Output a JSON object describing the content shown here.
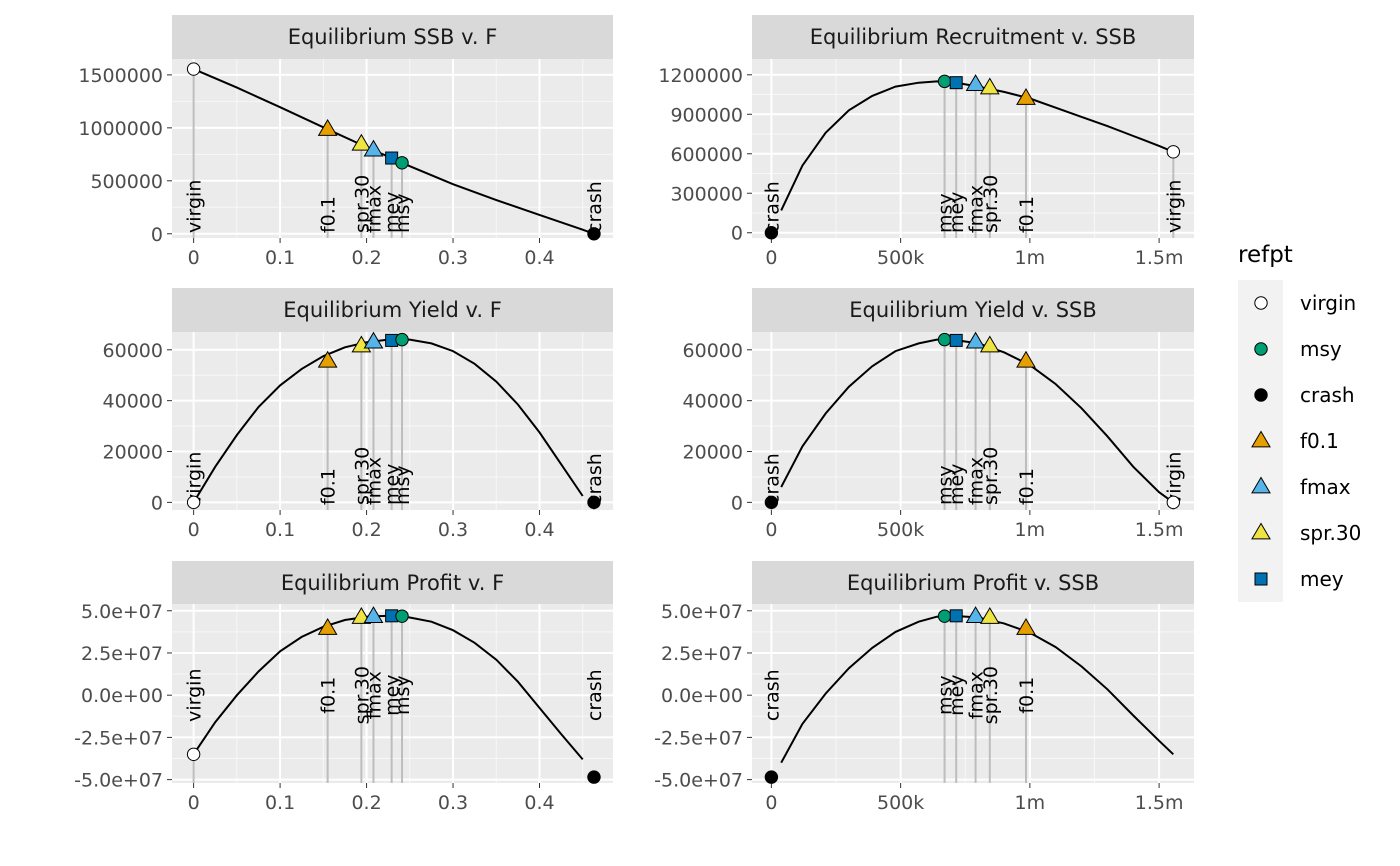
{
  "legend": {
    "title": "refpt",
    "items": [
      {
        "label": "virgin",
        "shape": "circle",
        "fill": "#ffffff"
      },
      {
        "label": "msy",
        "shape": "circle",
        "fill": "#009E73"
      },
      {
        "label": "crash",
        "shape": "circle",
        "fill": "#000000"
      },
      {
        "label": "f0.1",
        "shape": "triangle",
        "fill": "#E69F00"
      },
      {
        "label": "fmax",
        "shape": "triangle",
        "fill": "#56B4E9"
      },
      {
        "label": "spr.30",
        "shape": "triangle",
        "fill": "#F0E442"
      },
      {
        "label": "mey",
        "shape": "square",
        "fill": "#0072B2"
      }
    ]
  },
  "chart_data": [
    {
      "type": "line",
      "title": "Equilibrium SSB v. F",
      "xlim": [
        -0.025,
        0.485
      ],
      "ylim": [
        -40000,
        1650000
      ],
      "x_ticks": [
        0,
        0.1,
        0.2,
        0.3,
        0.4
      ],
      "x_tick_labels": [
        "0",
        "0.1",
        "0.2",
        "0.3",
        "0.4"
      ],
      "y_ticks": [
        0,
        500000,
        1000000,
        1500000
      ],
      "y_tick_labels": [
        "0",
        "500000",
        "1000000",
        "1500000"
      ],
      "curve": {
        "x": [
          0,
          0.05,
          0.1,
          0.15,
          0.2,
          0.25,
          0.3,
          0.35,
          0.4,
          0.45,
          0.463
        ],
        "y": [
          1555000,
          1380000,
          1195000,
          1005000,
          818000,
          638000,
          468000,
          318000,
          178000,
          38000,
          0
        ]
      },
      "points": [
        {
          "refpt": "virgin",
          "x": 0,
          "y": 1555000
        },
        {
          "refpt": "f0.1",
          "x": 0.155,
          "y": 985000
        },
        {
          "refpt": "spr.30",
          "x": 0.194,
          "y": 845000
        },
        {
          "refpt": "fmax",
          "x": 0.208,
          "y": 790000
        },
        {
          "refpt": "mey",
          "x": 0.229,
          "y": 715000
        },
        {
          "refpt": "msy",
          "x": 0.241,
          "y": 670000
        },
        {
          "refpt": "crash",
          "x": 0.463,
          "y": 0
        }
      ]
    },
    {
      "type": "line",
      "title": "Equilibrium Recruitment v. SSB",
      "xlim": [
        -75000,
        1635000
      ],
      "ylim": [
        -40000,
        1320000
      ],
      "x_ticks": [
        0,
        500000,
        1000000,
        1500000
      ],
      "x_tick_labels": [
        "0",
        "500k",
        "1m",
        "1.5m"
      ],
      "y_ticks": [
        0,
        300000,
        600000,
        900000,
        1200000
      ],
      "y_tick_labels": [
        "0",
        "300000",
        "600000",
        "900000",
        "1200000"
      ],
      "curve": {
        "x": [
          38000,
          120000,
          210000,
          300000,
          390000,
          480000,
          570000,
          640000,
          700000,
          800000,
          900000,
          1000000,
          1100000,
          1200000,
          1300000,
          1400000,
          1500000,
          1555000
        ],
        "y": [
          170000,
          510000,
          760000,
          930000,
          1040000,
          1110000,
          1140000,
          1150000,
          1145000,
          1110000,
          1070000,
          1020000,
          950000,
          880000,
          810000,
          735000,
          660000,
          615000
        ]
      },
      "points": [
        {
          "refpt": "crash",
          "x": 0,
          "y": 0
        },
        {
          "refpt": "msy",
          "x": 670000,
          "y": 1150000
        },
        {
          "refpt": "mey",
          "x": 715000,
          "y": 1140000
        },
        {
          "refpt": "fmax",
          "x": 790000,
          "y": 1125000
        },
        {
          "refpt": "spr.30",
          "x": 845000,
          "y": 1100000
        },
        {
          "refpt": "f0.1",
          "x": 985000,
          "y": 1020000
        },
        {
          "refpt": "virgin",
          "x": 1555000,
          "y": 615000
        }
      ]
    },
    {
      "type": "line",
      "title": "Equilibrium Yield v. F",
      "xlim": [
        -0.025,
        0.485
      ],
      "ylim": [
        -3000,
        67000
      ],
      "x_ticks": [
        0,
        0.1,
        0.2,
        0.3,
        0.4
      ],
      "x_tick_labels": [
        "0",
        "0.1",
        "0.2",
        "0.3",
        "0.4"
      ],
      "y_ticks": [
        0,
        20000,
        40000,
        60000
      ],
      "y_tick_labels": [
        "0",
        "20000",
        "40000",
        "60000"
      ],
      "curve": {
        "x": [
          0,
          0.025,
          0.05,
          0.075,
          0.1,
          0.125,
          0.15,
          0.175,
          0.2,
          0.225,
          0.25,
          0.275,
          0.3,
          0.325,
          0.35,
          0.375,
          0.4,
          0.425,
          0.45
        ],
        "y": [
          0,
          14000,
          26500,
          37500,
          46000,
          52500,
          57500,
          61000,
          63000,
          64000,
          64000,
          62500,
          59500,
          54500,
          47500,
          38500,
          27500,
          15000,
          2500
        ]
      },
      "points": [
        {
          "refpt": "virgin",
          "x": 0,
          "y": 0
        },
        {
          "refpt": "f0.1",
          "x": 0.155,
          "y": 55500
        },
        {
          "refpt": "spr.30",
          "x": 0.194,
          "y": 61500
        },
        {
          "refpt": "fmax",
          "x": 0.208,
          "y": 63000
        },
        {
          "refpt": "mey",
          "x": 0.229,
          "y": 63700
        },
        {
          "refpt": "msy",
          "x": 0.241,
          "y": 64000
        },
        {
          "refpt": "crash",
          "x": 0.463,
          "y": 0
        }
      ]
    },
    {
      "type": "line",
      "title": "Equilibrium Yield v. SSB",
      "xlim": [
        -75000,
        1635000
      ],
      "ylim": [
        -3000,
        67000
      ],
      "x_ticks": [
        0,
        500000,
        1000000,
        1500000
      ],
      "x_tick_labels": [
        "0",
        "500k",
        "1m",
        "1.5m"
      ],
      "y_ticks": [
        0,
        20000,
        40000,
        60000
      ],
      "y_tick_labels": [
        "0",
        "20000",
        "40000",
        "60000"
      ],
      "curve": {
        "x": [
          38000,
          120000,
          210000,
          300000,
          390000,
          480000,
          570000,
          640000,
          700000,
          800000,
          900000,
          1000000,
          1100000,
          1200000,
          1300000,
          1400000,
          1500000,
          1555000
        ],
        "y": [
          6000,
          22000,
          35000,
          45500,
          53500,
          59500,
          62500,
          64000,
          64000,
          62500,
          59000,
          54000,
          46500,
          37000,
          26000,
          14000,
          4000,
          0
        ]
      },
      "points": [
        {
          "refpt": "crash",
          "x": 0,
          "y": 0
        },
        {
          "refpt": "msy",
          "x": 670000,
          "y": 64000
        },
        {
          "refpt": "mey",
          "x": 715000,
          "y": 63700
        },
        {
          "refpt": "fmax",
          "x": 790000,
          "y": 63000
        },
        {
          "refpt": "spr.30",
          "x": 845000,
          "y": 61500
        },
        {
          "refpt": "f0.1",
          "x": 985000,
          "y": 55500
        },
        {
          "refpt": "virgin",
          "x": 1555000,
          "y": 0
        }
      ]
    },
    {
      "type": "line",
      "title": "Equilibrium Profit v. F",
      "xlim": [
        -0.025,
        0.485
      ],
      "ylim": [
        -52000000,
        54000000
      ],
      "x_ticks": [
        0,
        0.1,
        0.2,
        0.3,
        0.4
      ],
      "x_tick_labels": [
        "0",
        "0.1",
        "0.2",
        "0.3",
        "0.4"
      ],
      "y_ticks": [
        -50000000,
        -25000000,
        0,
        25000000,
        50000000
      ],
      "y_tick_labels": [
        "-5.0e+07",
        "-2.5e+07",
        "0.0e+00",
        "2.5e+07",
        "5.0e+07"
      ],
      "curve": {
        "x": [
          0,
          0.025,
          0.05,
          0.075,
          0.1,
          0.125,
          0.15,
          0.175,
          0.2,
          0.225,
          0.25,
          0.275,
          0.3,
          0.325,
          0.35,
          0.375,
          0.4,
          0.425,
          0.45
        ],
        "y": [
          -35000000,
          -16000000,
          0,
          14000000,
          26000000,
          34500000,
          40500000,
          44500000,
          46500000,
          47000000,
          46000000,
          43500000,
          38500000,
          31000000,
          21000000,
          8000000,
          -7500000,
          -23000000,
          -38000000
        ]
      },
      "points": [
        {
          "refpt": "virgin",
          "x": 0,
          "y": -35000000
        },
        {
          "refpt": "f0.1",
          "x": 0.155,
          "y": 39500000
        },
        {
          "refpt": "spr.30",
          "x": 0.194,
          "y": 46000000
        },
        {
          "refpt": "fmax",
          "x": 0.208,
          "y": 46500000
        },
        {
          "refpt": "mey",
          "x": 0.229,
          "y": 47000000
        },
        {
          "refpt": "msy",
          "x": 0.241,
          "y": 46800000
        },
        {
          "refpt": "crash",
          "x": 0.463,
          "y": -48500000
        }
      ]
    },
    {
      "type": "line",
      "title": "Equilibrium Profit v. SSB",
      "xlim": [
        -75000,
        1635000
      ],
      "ylim": [
        -52000000,
        54000000
      ],
      "x_ticks": [
        0,
        500000,
        1000000,
        1500000
      ],
      "x_tick_labels": [
        "0",
        "500k",
        "1m",
        "1.5m"
      ],
      "y_ticks": [
        -50000000,
        -25000000,
        0,
        25000000,
        50000000
      ],
      "y_tick_labels": [
        "-5.0e+07",
        "-2.5e+07",
        "0.0e+00",
        "2.5e+07",
        "5.0e+07"
      ],
      "curve": {
        "x": [
          38000,
          120000,
          210000,
          300000,
          390000,
          480000,
          570000,
          640000,
          700000,
          800000,
          900000,
          1000000,
          1100000,
          1200000,
          1300000,
          1400000,
          1500000,
          1555000
        ],
        "y": [
          -40000000,
          -17000000,
          1000000,
          16000000,
          28000000,
          37500000,
          43500000,
          46500000,
          47000000,
          46000000,
          42500000,
          37000000,
          28500000,
          17000000,
          3500000,
          -12000000,
          -27000000,
          -35000000
        ]
      },
      "points": [
        {
          "refpt": "crash",
          "x": 0,
          "y": -48500000
        },
        {
          "refpt": "msy",
          "x": 670000,
          "y": 46800000
        },
        {
          "refpt": "mey",
          "x": 715000,
          "y": 47000000
        },
        {
          "refpt": "fmax",
          "x": 790000,
          "y": 46500000
        },
        {
          "refpt": "spr.30",
          "x": 845000,
          "y": 46000000
        },
        {
          "refpt": "f0.1",
          "x": 985000,
          "y": 39500000
        }
      ]
    }
  ]
}
